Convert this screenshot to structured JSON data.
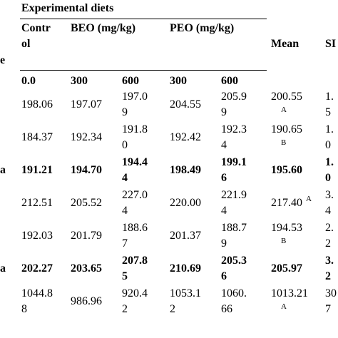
{
  "header": {
    "group_title": "Experimental diets",
    "col_control_line1": "Contr",
    "col_control_line2": "ol",
    "col_beo": "BEO (mg/kg)",
    "col_peo": "PEO (mg/kg)",
    "col_mean": "Mean",
    "col_sem_fragment": "SI",
    "left_fragment": "e"
  },
  "doses": [
    "0.0",
    "300",
    "600",
    "300",
    "600"
  ],
  "rows": [
    {
      "left": "",
      "bold": false,
      "c1": [
        "198.06"
      ],
      "c2": [
        "197.07"
      ],
      "c3": [
        "197.0",
        "9"
      ],
      "c4": [
        "204.55"
      ],
      "c5": [
        "205.9",
        "9"
      ],
      "mean": [
        "200.55",
        "A"
      ],
      "mean_sup_inline": "",
      "sem": [
        "1.",
        "5"
      ]
    },
    {
      "left": "",
      "bold": false,
      "c1": [
        "184.37"
      ],
      "c2": [
        "192.34"
      ],
      "c3": [
        "191.8",
        "0"
      ],
      "c4": [
        "192.42"
      ],
      "c5": [
        "192.3",
        "4"
      ],
      "mean": [
        "190.65",
        "B"
      ],
      "mean_sup_inline": "",
      "sem": [
        "1.",
        "0"
      ]
    },
    {
      "left": "a",
      "bold": true,
      "c1": [
        "191.21"
      ],
      "c2": [
        "194.70"
      ],
      "c3": [
        "194.4",
        "4"
      ],
      "c4": [
        "198.49"
      ],
      "c5": [
        "199.1",
        "6"
      ],
      "mean": [
        "195.60"
      ],
      "mean_sup_inline": "",
      "sem": [
        "1.",
        "0"
      ]
    },
    {
      "left": "",
      "bold": false,
      "c1": [
        "212.51"
      ],
      "c2": [
        "205.52"
      ],
      "c3": [
        "227.0",
        "4"
      ],
      "c4": [
        "220.00"
      ],
      "c5": [
        "221.9",
        "4"
      ],
      "mean": [
        "217.40"
      ],
      "mean_sup_inline": "A",
      "sem": [
        "3.",
        "4"
      ]
    },
    {
      "left": "",
      "bold": false,
      "c1": [
        "192.03"
      ],
      "c2": [
        "201.79"
      ],
      "c3": [
        "188.6",
        "7"
      ],
      "c4": [
        "201.37"
      ],
      "c5": [
        "188.7",
        "9"
      ],
      "mean": [
        "194.53",
        "B"
      ],
      "mean_sup_inline": "",
      "sem": [
        "2.",
        "2"
      ]
    },
    {
      "left": "a",
      "bold": true,
      "c1": [
        "202.27"
      ],
      "c2": [
        "203.65"
      ],
      "c3": [
        "207.8",
        "5"
      ],
      "c4": [
        "210.69"
      ],
      "c5": [
        "205.3",
        "6"
      ],
      "mean": [
        "205.97"
      ],
      "mean_sup_inline": "",
      "sem": [
        "3.",
        "2"
      ]
    },
    {
      "left": "",
      "bold": false,
      "c1": [
        "1044.8",
        "8"
      ],
      "c2": [
        "986.96"
      ],
      "c3": [
        "920.4",
        "2"
      ],
      "c4": [
        "1053.1",
        "2"
      ],
      "c5": [
        "1060.",
        "66"
      ],
      "mean": [
        "1013.21",
        "A"
      ],
      "mean_sup_inline": "",
      "sem": [
        "30",
        "7"
      ]
    }
  ]
}
